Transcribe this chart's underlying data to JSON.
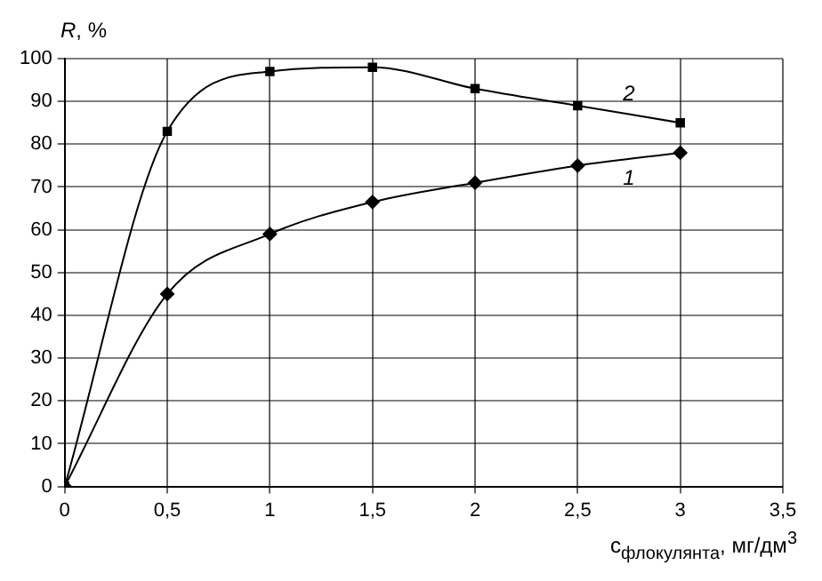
{
  "chart_data": {
    "type": "line",
    "xlabel": "c$_{флокулянта}$, мг/дм$^{3}$",
    "ylabel": "R, %",
    "x": [
      0,
      0.5,
      1,
      1.5,
      2,
      2.5,
      3
    ],
    "series": [
      {
        "name": "1",
        "color": "#000000",
        "marker": "diamond",
        "values": [
          0,
          45,
          59,
          66.5,
          71,
          75,
          78
        ]
      },
      {
        "name": "2",
        "color": "#000000",
        "marker": "square",
        "values": [
          0,
          83,
          97,
          98,
          93,
          89,
          85
        ]
      }
    ],
    "xlim": [
      0,
      3.5
    ],
    "xticks": [
      0,
      {
        "value": 0.5,
        "label": "0,5"
      },
      1,
      {
        "value": 1.5,
        "label": "1,5"
      },
      2,
      {
        "value": 2.5,
        "label": "2,5"
      },
      3,
      {
        "value": 3.5,
        "label": "3,5"
      }
    ],
    "ylim": [
      0,
      100
    ],
    "yticks": [
      0,
      10,
      20,
      30,
      40,
      50,
      60,
      70,
      80,
      90,
      100
    ],
    "grid": true,
    "legend": false
  }
}
